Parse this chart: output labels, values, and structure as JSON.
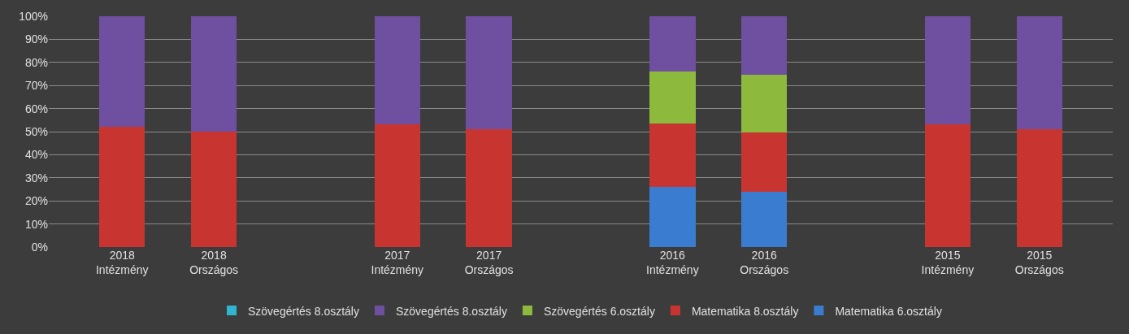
{
  "chart_data": {
    "type": "bar",
    "stacked": true,
    "categories": [
      "2018\nIntézmény",
      "2018\nOrszágos",
      null,
      "2017\nIntézmény",
      "2017\nOrszágos",
      null,
      "2016\nIntézmény",
      "2016\nOrszágos",
      null,
      "2015\nIntézmény",
      "2015\nOrszágos"
    ],
    "series": [
      {
        "name": "Matematika 6.osztály",
        "color": "#3a7dd0",
        "values": [
          0,
          0,
          null,
          0,
          0,
          null,
          26,
          24,
          null,
          0,
          0
        ]
      },
      {
        "name": "Matematika 8.osztály",
        "color": "#c83530",
        "values": [
          52,
          50,
          null,
          53,
          51,
          null,
          27.5,
          25.5,
          null,
          53,
          51
        ]
      },
      {
        "name": "Szövegértés 6.osztály",
        "color": "#8dba3c",
        "values": [
          0,
          0,
          null,
          0,
          0,
          null,
          22.5,
          25,
          null,
          0,
          0
        ]
      },
      {
        "name": "Szövegértés 8.osztály",
        "color": "#6f4fa0",
        "values": [
          48,
          50,
          null,
          47,
          49,
          null,
          24,
          25.5,
          null,
          47,
          49
        ]
      },
      {
        "name": "Szövegértés 8.osztály",
        "color": "#2fb5d0",
        "values": [
          0,
          0,
          null,
          0,
          0,
          null,
          0,
          0,
          null,
          0,
          0
        ]
      }
    ],
    "ylim": [
      0,
      100
    ],
    "yticks": [
      {
        "value": 0,
        "label": "0%"
      },
      {
        "value": 10,
        "label": "10%"
      },
      {
        "value": 20,
        "label": "20%"
      },
      {
        "value": 30,
        "label": "30%"
      },
      {
        "value": 40,
        "label": "40%"
      },
      {
        "value": 50,
        "label": "50%"
      },
      {
        "value": 60,
        "label": "60%"
      },
      {
        "value": 70,
        "label": "70%"
      },
      {
        "value": 80,
        "label": "80%"
      },
      {
        "value": 90,
        "label": "90%"
      },
      {
        "value": 100,
        "label": "100%"
      }
    ],
    "grid": "y",
    "legend": "bottom"
  }
}
